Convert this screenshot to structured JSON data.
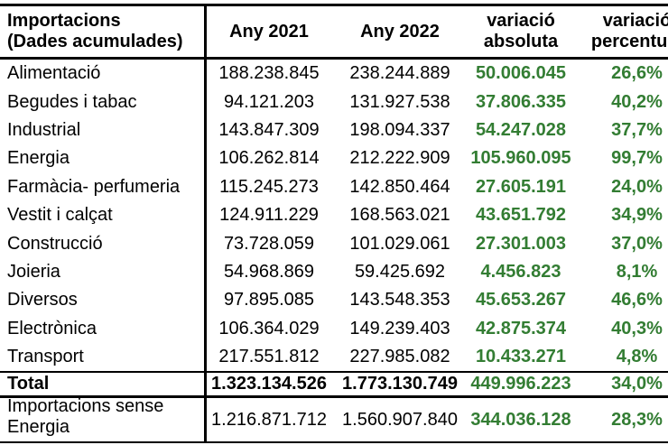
{
  "colors": {
    "positive_green": "#337D33",
    "text_black": "#000000",
    "border_black": "#000000",
    "background": "#FFFFFF"
  },
  "table": {
    "header": {
      "rowhead_line1": "Importacions",
      "rowhead_line2": "(Dades acumulades)",
      "any2021": "Any 2021",
      "any2022": "Any 2022",
      "variacio_absoluta_line1": "variació",
      "variacio_absoluta_line2": "absoluta",
      "variacio_percentual_line1": "variació",
      "variacio_percentual_line2": "percentual"
    },
    "rows": [
      {
        "label": "Alimentació",
        "any2021": "188.238.845",
        "any2022": "238.244.889",
        "variacio_absoluta": "50.006.045",
        "variacio_percentual": "26,6%"
      },
      {
        "label": "Begudes i tabac",
        "any2021": "94.121.203",
        "any2022": "131.927.538",
        "variacio_absoluta": "37.806.335",
        "variacio_percentual": "40,2%"
      },
      {
        "label": "Industrial",
        "any2021": "143.847.309",
        "any2022": "198.094.337",
        "variacio_absoluta": "54.247.028",
        "variacio_percentual": "37,7%"
      },
      {
        "label": "Energia",
        "any2021": "106.262.814",
        "any2022": "212.222.909",
        "variacio_absoluta": "105.960.095",
        "variacio_percentual": "99,7%"
      },
      {
        "label": "Farmàcia- perfumeria",
        "any2021": "115.245.273",
        "any2022": "142.850.464",
        "variacio_absoluta": "27.605.191",
        "variacio_percentual": "24,0%"
      },
      {
        "label": "Vestit i calçat",
        "any2021": "124.911.229",
        "any2022": "168.563.021",
        "variacio_absoluta": "43.651.792",
        "variacio_percentual": "34,9%"
      },
      {
        "label": "Construcció",
        "any2021": "73.728.059",
        "any2022": "101.029.061",
        "variacio_absoluta": "27.301.003",
        "variacio_percentual": "37,0%"
      },
      {
        "label": "Joieria",
        "any2021": "54.968.869",
        "any2022": "59.425.692",
        "variacio_absoluta": "4.456.823",
        "variacio_percentual": "8,1%"
      },
      {
        "label": "Diversos",
        "any2021": "97.895.085",
        "any2022": "143.548.353",
        "variacio_absoluta": "45.653.267",
        "variacio_percentual": "46,6%"
      },
      {
        "label": "Electrònica",
        "any2021": "106.364.029",
        "any2022": "149.239.403",
        "variacio_absoluta": "42.875.374",
        "variacio_percentual": "40,3%"
      },
      {
        "label": "Transport",
        "any2021": "217.551.812",
        "any2022": "227.985.082",
        "variacio_absoluta": "10.433.271",
        "variacio_percentual": "4,8%"
      }
    ],
    "total_row": {
      "label": "Total",
      "any2021": "1.323.134.526",
      "any2022": "1.773.130.749",
      "variacio_absoluta": "449.996.223",
      "variacio_percentual": "34,0%"
    },
    "sense_energia_row": {
      "label_line1": "Importacions sense",
      "label_line2": "Energia",
      "any2021": "1.216.871.712",
      "any2022": "1.560.907.840",
      "variacio_absoluta": "344.036.128",
      "variacio_percentual": "28,3%"
    }
  },
  "chart_data": {
    "type": "table",
    "title": "Importacions (Dades acumulades)",
    "columns": [
      "Importacions (Dades acumulades)",
      "Any 2021",
      "Any 2022",
      "variació absoluta",
      "variació percentual"
    ],
    "rows": [
      [
        "Alimentació",
        "188.238.845",
        "238.244.889",
        "50.006.045",
        "26,6%"
      ],
      [
        "Begudes i tabac",
        "94.121.203",
        "131.927.538",
        "37.806.335",
        "40,2%"
      ],
      [
        "Industrial",
        "143.847.309",
        "198.094.337",
        "54.247.028",
        "37,7%"
      ],
      [
        "Energia",
        "106.262.814",
        "212.222.909",
        "105.960.095",
        "99,7%"
      ],
      [
        "Farmàcia- perfumeria",
        "115.245.273",
        "142.850.464",
        "27.605.191",
        "24,0%"
      ],
      [
        "Vestit i calçat",
        "124.911.229",
        "168.563.021",
        "43.651.792",
        "34,9%"
      ],
      [
        "Construcció",
        "73.728.059",
        "101.029.061",
        "27.301.003",
        "37,0%"
      ],
      [
        "Joieria",
        "54.968.869",
        "59.425.692",
        "4.456.823",
        "8,1%"
      ],
      [
        "Diversos",
        "97.895.085",
        "143.548.353",
        "45.653.267",
        "46,6%"
      ],
      [
        "Electrònica",
        "106.364.029",
        "149.239.403",
        "42.875.374",
        "40,3%"
      ],
      [
        "Transport",
        "217.551.812",
        "227.985.082",
        "10.433.271",
        "4,8%"
      ],
      [
        "Total",
        "1.323.134.526",
        "1.773.130.749",
        "449.996.223",
        "34,0%"
      ],
      [
        "Importacions sense Energia",
        "1.216.871.712",
        "1.560.907.840",
        "344.036.128",
        "28,3%"
      ]
    ]
  }
}
